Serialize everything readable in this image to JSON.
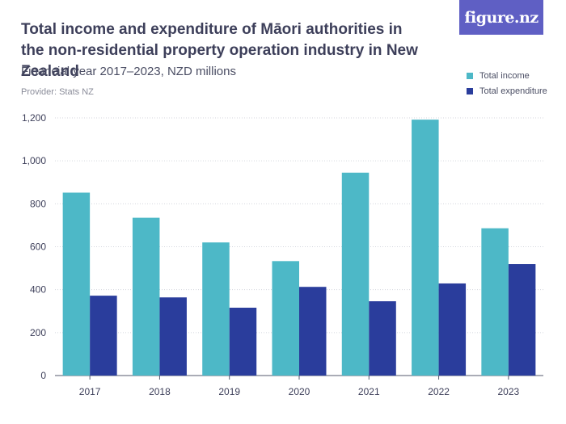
{
  "header": {
    "title": "Total income and expenditure of Māori authorities in the non-residential property operation industry in New Zealand",
    "subtitle": "Financial year 2017–2023, NZD millions",
    "provider": "Provider: Stats NZ",
    "logo_text": "figure.nz"
  },
  "colors": {
    "income": "#4db8c7",
    "expenditure": "#2a3d9c",
    "logo_bg": "#5f5fc4"
  },
  "chart_data": {
    "type": "bar",
    "title": "Total income and expenditure of Māori authorities in the non-residential property operation industry in New Zealand",
    "xlabel": "",
    "ylabel": "NZD millions",
    "ylim": [
      0,
      1200
    ],
    "yticks": [
      0,
      200,
      400,
      600,
      800,
      1000,
      1200
    ],
    "ytick_labels": [
      "0",
      "200",
      "400",
      "600",
      "800",
      "1,000",
      "1,200"
    ],
    "categories": [
      "2017",
      "2018",
      "2019",
      "2020",
      "2021",
      "2022",
      "2023"
    ],
    "legend_position": "top-right",
    "series": [
      {
        "name": "Total income",
        "values": [
          852,
          735,
          620,
          533,
          945,
          1192,
          686
        ]
      },
      {
        "name": "Total expenditure",
        "values": [
          372,
          364,
          316,
          413,
          346,
          429,
          519
        ]
      }
    ]
  }
}
